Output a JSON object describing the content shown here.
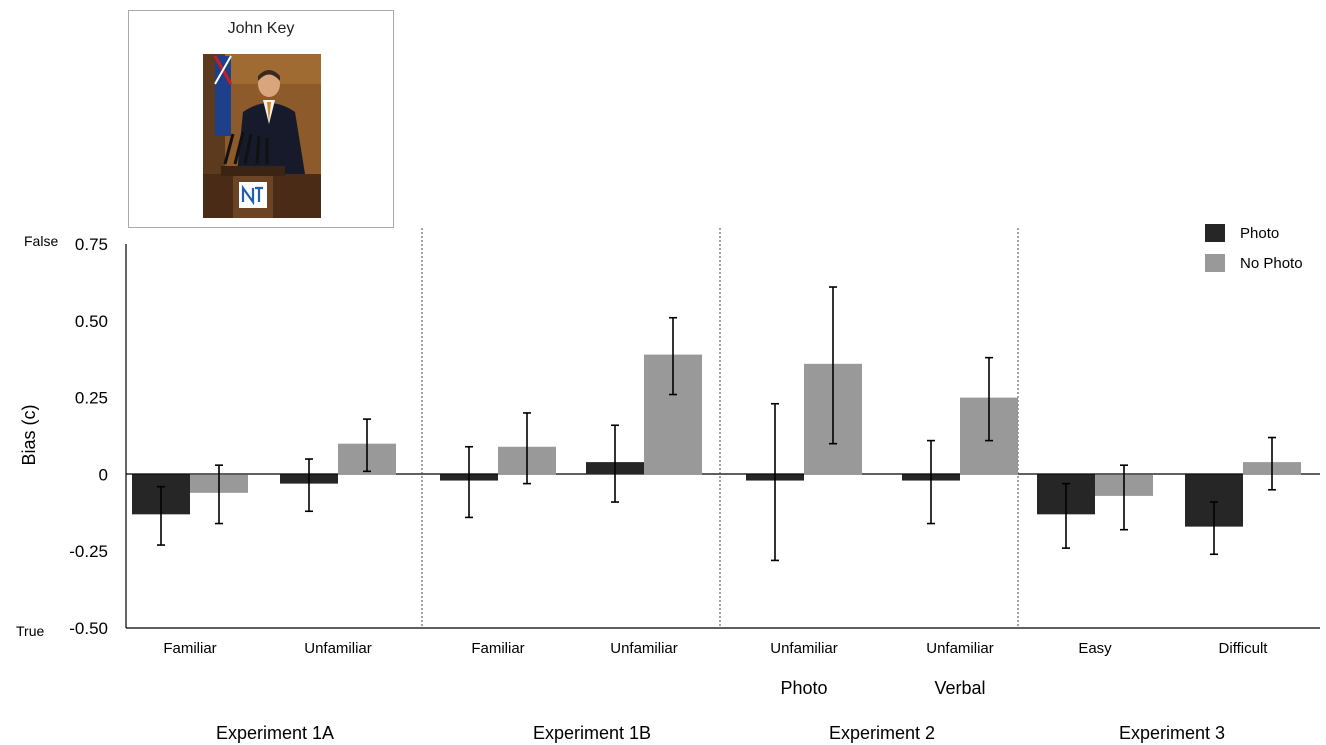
{
  "stimulus": {
    "name": "John Key",
    "photo_icon": "person-at-podium-photo",
    "podium_logo_text": "National"
  },
  "chart_data": {
    "type": "bar",
    "ylabel": "Bias (c)",
    "ylim": [
      -0.5,
      0.75
    ],
    "yticks": [
      {
        "value": 0.75,
        "label": "0.75"
      },
      {
        "value": 0.5,
        "label": "0.50"
      },
      {
        "value": 0.25,
        "label": "0.25"
      },
      {
        "value": 0,
        "label": "0"
      },
      {
        "value": -0.25,
        "label": "-0.25"
      },
      {
        "value": -0.5,
        "label": "-0.50"
      }
    ],
    "y_end_labels": {
      "top": "False",
      "bottom": "True"
    },
    "grid": false,
    "legend_position": "top-right",
    "colors": {
      "Photo": "#262626",
      "No Photo": "#999999"
    },
    "series_names": [
      "Photo",
      "No Photo"
    ],
    "groups": [
      {
        "name": "Experiment 1A",
        "subgroup": "",
        "categories": [
          {
            "label": "Familiar",
            "values": [
              -0.13,
              -0.06
            ],
            "ci_low": [
              -0.23,
              -0.16
            ],
            "ci_high": [
              -0.04,
              0.03
            ]
          },
          {
            "label": "Unfamiliar",
            "values": [
              -0.03,
              0.1
            ],
            "ci_low": [
              -0.12,
              0.01
            ],
            "ci_high": [
              0.05,
              0.18
            ]
          }
        ]
      },
      {
        "name": "Experiment 1B",
        "subgroup": "",
        "categories": [
          {
            "label": "Familiar",
            "values": [
              -0.02,
              0.09
            ],
            "ci_low": [
              -0.14,
              -0.03
            ],
            "ci_high": [
              0.09,
              0.2
            ]
          },
          {
            "label": "Unfamiliar",
            "values": [
              0.04,
              0.39
            ],
            "ci_low": [
              -0.09,
              0.26
            ],
            "ci_high": [
              0.16,
              0.51
            ]
          }
        ]
      },
      {
        "name": "Experiment 2",
        "categories": [
          {
            "label": "Unfamiliar",
            "sublabel": "Photo",
            "values": [
              -0.02,
              0.36
            ],
            "ci_low": [
              -0.28,
              0.1
            ],
            "ci_high": [
              0.23,
              0.61
            ]
          },
          {
            "label": "Unfamiliar",
            "sublabel": "Verbal",
            "values": [
              -0.02,
              0.25
            ],
            "ci_low": [
              -0.16,
              0.11
            ],
            "ci_high": [
              0.11,
              0.38
            ]
          }
        ]
      },
      {
        "name": "Experiment 3",
        "categories": [
          {
            "label": "Easy",
            "values": [
              -0.13,
              -0.07
            ],
            "ci_low": [
              -0.24,
              -0.18
            ],
            "ci_high": [
              -0.03,
              0.03
            ]
          },
          {
            "label": "Difficult",
            "values": [
              -0.17,
              0.04
            ],
            "ci_low": [
              -0.26,
              -0.05
            ],
            "ci_high": [
              -0.09,
              0.12
            ]
          }
        ]
      }
    ]
  }
}
